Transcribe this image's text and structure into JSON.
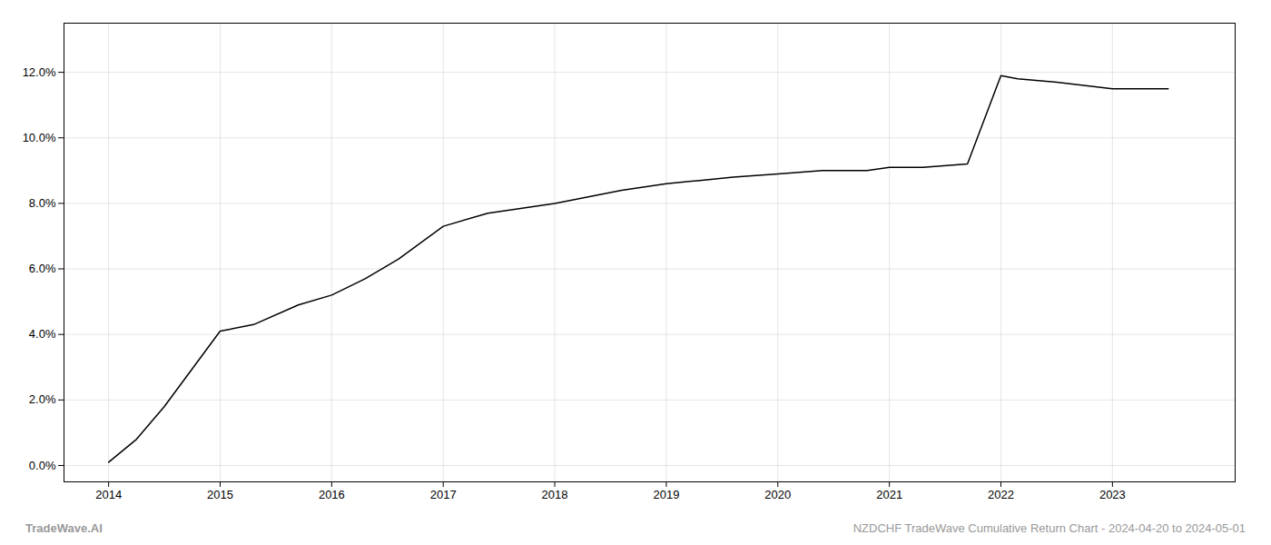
{
  "chart_data": {
    "type": "line",
    "x": [
      2014.0,
      2014.25,
      2014.5,
      2015.0,
      2015.3,
      2015.7,
      2016.0,
      2016.3,
      2016.6,
      2017.0,
      2017.4,
      2018.0,
      2018.3,
      2018.6,
      2019.0,
      2019.3,
      2019.6,
      2020.0,
      2020.4,
      2020.8,
      2021.0,
      2021.3,
      2021.7,
      2022.0,
      2022.15,
      2022.5,
      2023.0,
      2023.5
    ],
    "values": [
      0.001,
      0.008,
      0.018,
      0.041,
      0.043,
      0.049,
      0.052,
      0.057,
      0.063,
      0.073,
      0.077,
      0.08,
      0.082,
      0.084,
      0.086,
      0.087,
      0.088,
      0.089,
      0.09,
      0.09,
      0.091,
      0.091,
      0.092,
      0.119,
      0.118,
      0.117,
      0.115,
      0.115
    ],
    "xlim": [
      2013.6,
      2024.1
    ],
    "ylim": [
      -0.005,
      0.135
    ],
    "xticks": [
      2014,
      2015,
      2016,
      2017,
      2018,
      2019,
      2020,
      2021,
      2022,
      2023
    ],
    "yticks": [
      {
        "value": 0.0,
        "label": "0.0%"
      },
      {
        "value": 0.02,
        "label": "2.0%"
      },
      {
        "value": 0.04,
        "label": "4.0%"
      },
      {
        "value": 0.06,
        "label": "6.0%"
      },
      {
        "value": 0.08,
        "label": "8.0%"
      },
      {
        "value": 0.1,
        "label": "10.0%"
      },
      {
        "value": 0.12,
        "label": "12.0%"
      }
    ],
    "grid": true,
    "annotations": [
      "TradeWave.AI",
      "NZDCHF TradeWave Cumulative Return Chart - 2024-04-20 to 2024-05-01"
    ]
  }
}
